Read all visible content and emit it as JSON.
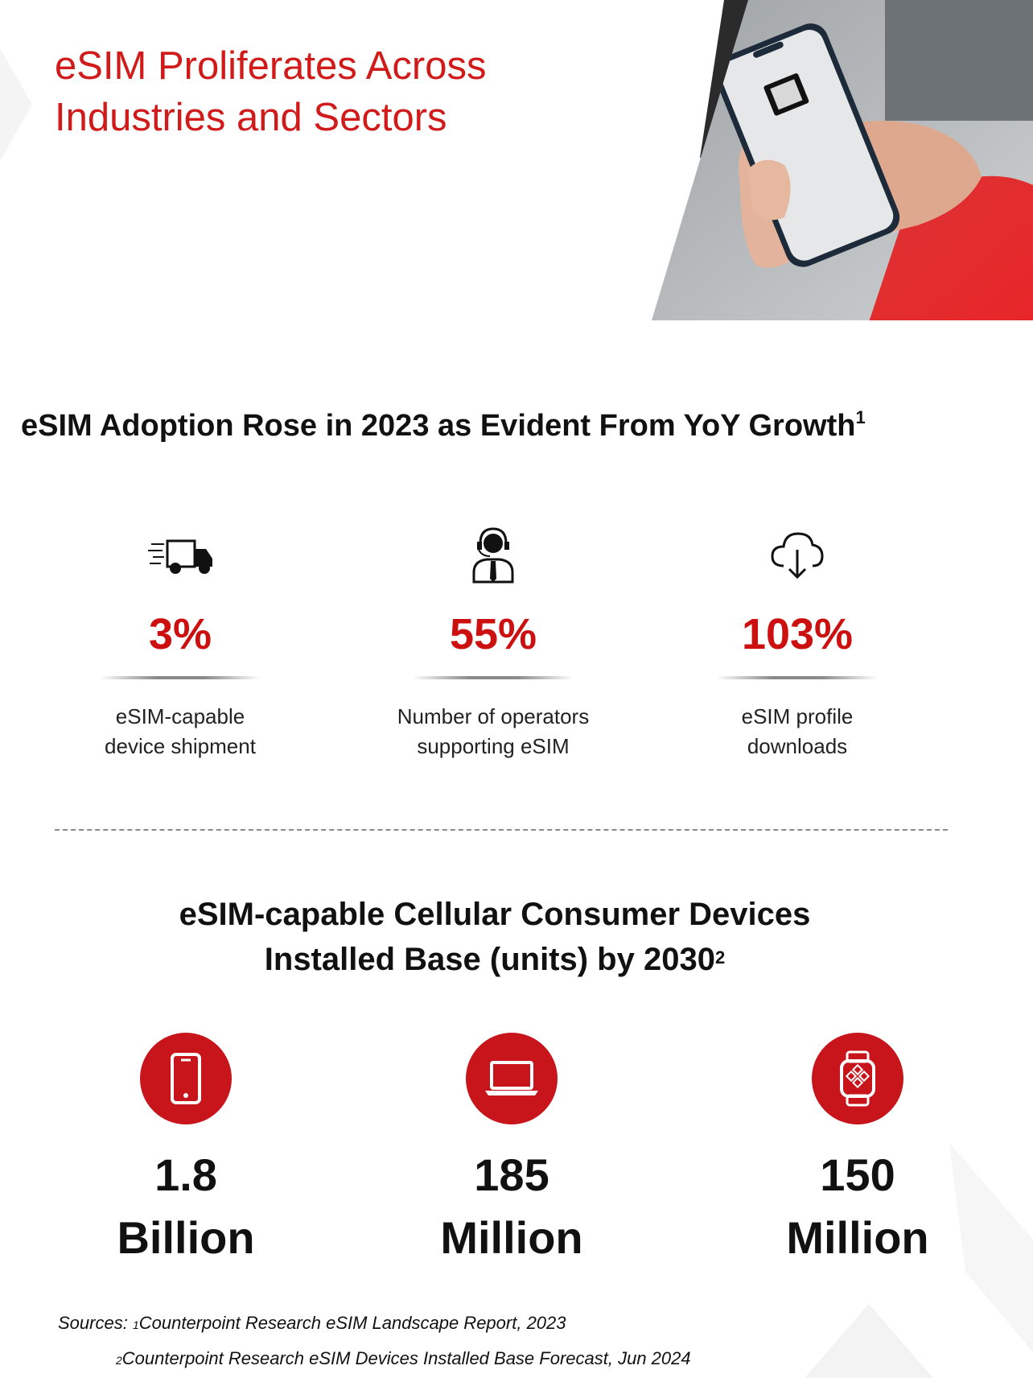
{
  "header": {
    "title_line1": "eSIM Proliferates Across",
    "title_line2": "Industries and Sectors"
  },
  "section1": {
    "heading": "eSIM Adoption Rose in 2023 as Evident From YoY Growth",
    "heading_sup": "1",
    "stats": [
      {
        "icon": "delivery-truck-icon",
        "value": "3%",
        "label_line1": "eSIM-capable",
        "label_line2": "device shipment"
      },
      {
        "icon": "operator-headset-icon",
        "value": "55%",
        "label_line1": "Number of operators",
        "label_line2": "supporting eSIM"
      },
      {
        "icon": "cloud-download-icon",
        "value": "103%",
        "label_line1": "eSIM profile",
        "label_line2": "downloads"
      }
    ]
  },
  "section2": {
    "heading_line1": "eSIM-capable Cellular Consumer Devices",
    "heading_line2": "Installed Base (units) by 2030",
    "heading_sup": "2",
    "devices": [
      {
        "icon": "smartphone-icon",
        "number": "1.8",
        "unit": "Billion"
      },
      {
        "icon": "laptop-icon",
        "number": "185",
        "unit": "Million"
      },
      {
        "icon": "smartwatch-icon",
        "number": "150",
        "unit": "Million"
      }
    ]
  },
  "sources": {
    "prefix": "Sources: ",
    "sup1": "1",
    "source1": "Counterpoint Research eSIM Landscape Report, 2023",
    "sup2": "2",
    "source2": "Counterpoint Research eSIM Devices Installed Base Forecast, Jun 2024"
  },
  "colors": {
    "accent_red": "#d11a1a",
    "circle_red": "#c8141b",
    "text_dark": "#111111"
  }
}
